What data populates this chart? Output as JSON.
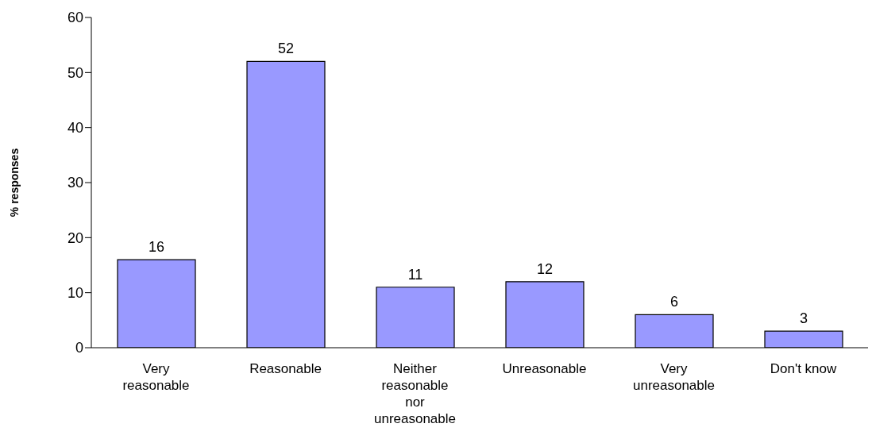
{
  "chart_data": {
    "type": "bar",
    "ylabel": "% responses",
    "categories": [
      "Very reasonable",
      "Reasonable",
      "Neither reasonable nor unreasonable",
      "Unreasonable",
      "Very unreasonable",
      "Don't know"
    ],
    "values": [
      16,
      52,
      11,
      12,
      6,
      3
    ],
    "color": "#9999ff",
    "ylim": [
      0,
      60
    ],
    "yticks": [
      0,
      10,
      20,
      30,
      40,
      50,
      60
    ],
    "grid": false,
    "legend": false,
    "data_labels": true
  }
}
